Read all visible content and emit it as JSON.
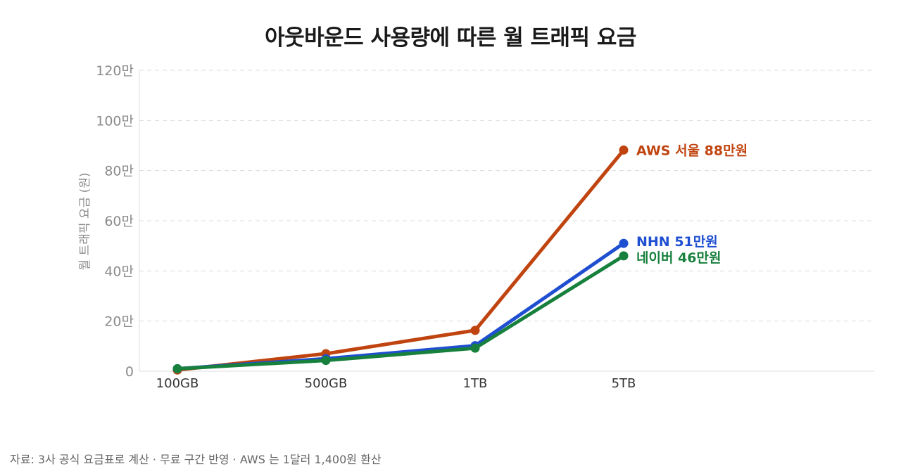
{
  "chart_data": {
    "type": "line",
    "title": "아웃바운드 사용량에 따른 월 트래픽 요금",
    "xlabel": "",
    "ylabel": "월 트래픽 요금 (원)",
    "categories": [
      "100GB",
      "500GB",
      "1TB",
      "5TB"
    ],
    "ylim": [
      0,
      1200000
    ],
    "yticks": [
      0,
      200000,
      400000,
      600000,
      800000,
      1000000,
      1200000
    ],
    "ytick_labels": [
      "0",
      "20만",
      "40만",
      "60만",
      "80만",
      "100만",
      "120만"
    ],
    "grid": true,
    "series": [
      {
        "name": "AWS 서울",
        "values": [
          5000,
          70000,
          163000,
          882000
        ],
        "color": "#c0440f",
        "end_label": "AWS 서울  88만원"
      },
      {
        "name": "NHN",
        "values": [
          10000,
          50000,
          102000,
          510000
        ],
        "color": "#1f4fd1",
        "end_label": "NHN  51만원"
      },
      {
        "name": "네이버",
        "values": [
          10000,
          43000,
          92000,
          460000
        ],
        "color": "#17803d",
        "end_label": "네이버  46만원"
      }
    ]
  },
  "source_note": "자료: 3사 공식 요금표로 계산 · 무료 구간 반영 · AWS 는 1달러 1,400원 환산"
}
